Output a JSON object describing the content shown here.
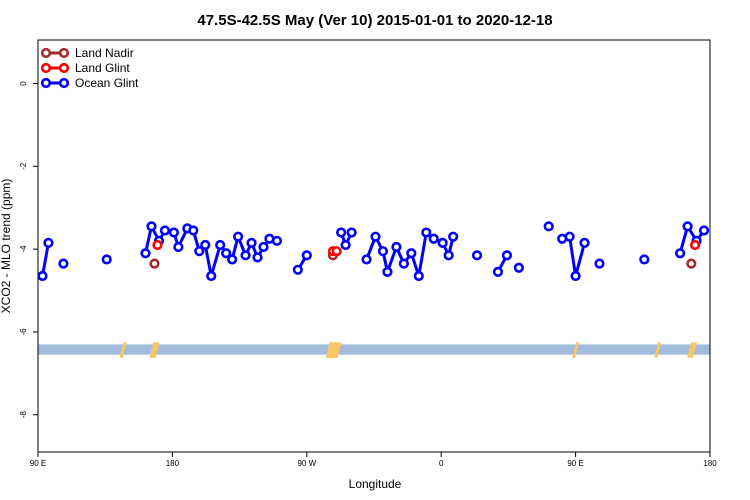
{
  "chart_data": {
    "type": "line",
    "title": "47.5S-42.5S May (Ver 10)   2015-01-01 to 2020-12-18",
    "xlabel": "Longitude",
    "ylabel": "XCO2 - MLO trend (ppm)",
    "x_ticks": [
      {
        "value": 90,
        "label": "90 E"
      },
      {
        "value": 180,
        "label": "180"
      },
      {
        "value": 270,
        "label": "90 W"
      },
      {
        "value": 360,
        "label": "0"
      },
      {
        "value": 450,
        "label": "90 E"
      },
      {
        "value": 540,
        "label": "180"
      }
    ],
    "y_ticks": [
      {
        "value": 0,
        "label": "0"
      },
      {
        "value": -2,
        "label": "-2"
      },
      {
        "value": -4,
        "label": "-4"
      },
      {
        "value": -6,
        "label": "-6"
      },
      {
        "value": -8,
        "label": "-8"
      }
    ],
    "xlim": [
      90,
      540
    ],
    "ylim": [
      -8.9,
      1.05
    ],
    "legend_position": "top-left",
    "series": [
      {
        "name": "Land Nadir",
        "color": "#a52a2a",
        "segments": [
          [
            [
              168,
              -4.35
            ]
          ],
          [
            [
              287.5,
              -4.15
            ]
          ],
          [
            [
              527.5,
              -4.35
            ]
          ]
        ]
      },
      {
        "name": "Land Glint",
        "color": "#ff0000",
        "segments": [
          [
            [
              170,
              -3.9
            ]
          ],
          [
            [
              287.5,
              -4.05
            ],
            [
              290,
              -4.05
            ]
          ],
          [
            [
              530,
              -3.9
            ]
          ]
        ]
      },
      {
        "name": "Ocean Glint",
        "color": "#0000ff",
        "segments": [
          [
            [
              93,
              -4.65
            ],
            [
              97,
              -3.85
            ]
          ],
          [
            [
              107,
              -4.35
            ]
          ],
          [
            [
              136,
              -4.25
            ]
          ],
          [
            [
              162,
              -4.1
            ],
            [
              166,
              -3.45
            ],
            [
              171,
              -3.8
            ],
            [
              175,
              -3.55
            ],
            [
              181,
              -3.6
            ],
            [
              184,
              -3.95
            ],
            [
              190,
              -3.5
            ],
            [
              194,
              -3.55
            ],
            [
              198,
              -4.05
            ],
            [
              202,
              -3.9
            ],
            [
              206,
              -4.65
            ],
            [
              212,
              -3.9
            ],
            [
              216,
              -4.1
            ],
            [
              220,
              -4.25
            ],
            [
              224,
              -3.7
            ],
            [
              229,
              -4.15
            ],
            [
              233,
              -3.85
            ],
            [
              237,
              -4.2
            ],
            [
              241,
              -3.95
            ],
            [
              245,
              -3.75
            ],
            [
              250,
              -3.8
            ]
          ],
          [
            [
              264,
              -4.5
            ],
            [
              270,
              -4.15
            ]
          ],
          [
            [
              293,
              -3.6
            ],
            [
              296,
              -3.9
            ],
            [
              300,
              -3.6
            ]
          ],
          [
            [
              310,
              -4.25
            ],
            [
              316,
              -3.7
            ],
            [
              321,
              -4.05
            ],
            [
              324,
              -4.55
            ],
            [
              330,
              -3.95
            ],
            [
              335,
              -4.35
            ],
            [
              340,
              -4.1
            ],
            [
              345,
              -4.65
            ],
            [
              350,
              -3.6
            ],
            [
              355,
              -3.75
            ],
            [
              361,
              -3.85
            ],
            [
              365,
              -4.15
            ],
            [
              368,
              -3.7
            ]
          ],
          [
            [
              384,
              -4.15
            ]
          ],
          [
            [
              398,
              -4.55
            ],
            [
              404,
              -4.15
            ]
          ],
          [
            [
              412,
              -4.45
            ]
          ],
          [
            [
              432,
              -3.45
            ]
          ],
          [
            [
              441,
              -3.75
            ],
            [
              446,
              -3.7
            ],
            [
              450,
              -4.65
            ],
            [
              456,
              -3.85
            ]
          ],
          [
            [
              466,
              -4.35
            ]
          ],
          [
            [
              496,
              -4.25
            ]
          ],
          [
            [
              520,
              -4.1
            ],
            [
              525,
              -3.45
            ],
            [
              531,
              -3.8
            ],
            [
              536,
              -3.55
            ]
          ]
        ]
      }
    ],
    "annotation_band": {
      "color": "#a3bbdc",
      "y_from": -6.55,
      "y_to": -6.3
    },
    "land_marks_color": "#f7c766",
    "land_marks_x": [
      147,
      167,
      169,
      285,
      286,
      287,
      288,
      289,
      290,
      291,
      450,
      505,
      527,
      529
    ]
  }
}
